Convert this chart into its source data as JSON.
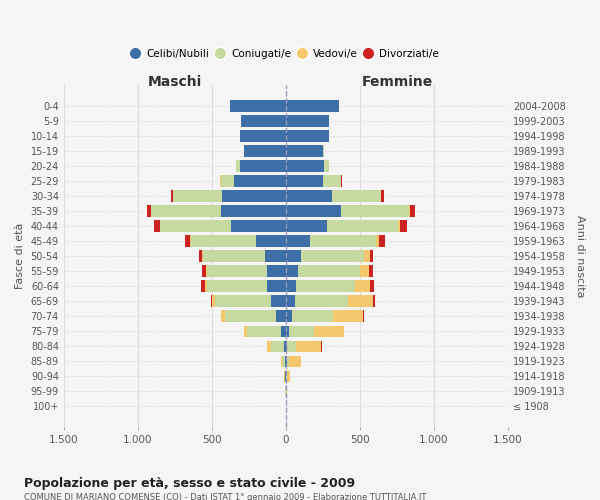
{
  "age_groups": [
    "100+",
    "95-99",
    "90-94",
    "85-89",
    "80-84",
    "75-79",
    "70-74",
    "65-69",
    "60-64",
    "55-59",
    "50-54",
    "45-49",
    "40-44",
    "35-39",
    "30-34",
    "25-29",
    "20-24",
    "15-19",
    "10-14",
    "5-9",
    "0-4"
  ],
  "birth_years": [
    "≤ 1908",
    "1909-1913",
    "1914-1918",
    "1919-1923",
    "1924-1928",
    "1929-1933",
    "1934-1938",
    "1939-1943",
    "1944-1948",
    "1949-1953",
    "1954-1958",
    "1959-1963",
    "1964-1968",
    "1969-1973",
    "1974-1978",
    "1979-1983",
    "1984-1988",
    "1989-1993",
    "1994-1998",
    "1999-2003",
    "2004-2008"
  ],
  "males": {
    "celibi": [
      2,
      2,
      3,
      5,
      10,
      30,
      70,
      100,
      130,
      130,
      140,
      200,
      370,
      440,
      430,
      350,
      310,
      280,
      310,
      300,
      380
    ],
    "coniugati": [
      0,
      2,
      5,
      20,
      90,
      230,
      340,
      380,
      400,
      400,
      420,
      440,
      480,
      470,
      330,
      90,
      25,
      5,
      2,
      0,
      0
    ],
    "vedovi": [
      0,
      0,
      2,
      10,
      25,
      20,
      25,
      20,
      15,
      10,
      8,
      5,
      3,
      2,
      2,
      2,
      0,
      0,
      0,
      0,
      0
    ],
    "divorziati": [
      0,
      0,
      0,
      0,
      2,
      5,
      5,
      8,
      25,
      25,
      20,
      35,
      35,
      25,
      15,
      5,
      2,
      0,
      0,
      0,
      0
    ]
  },
  "females": {
    "nubili": [
      2,
      2,
      3,
      5,
      10,
      20,
      40,
      60,
      70,
      80,
      100,
      160,
      280,
      370,
      310,
      250,
      260,
      250,
      290,
      290,
      360
    ],
    "coniugate": [
      0,
      2,
      5,
      15,
      60,
      170,
      280,
      360,
      400,
      420,
      430,
      450,
      480,
      460,
      330,
      120,
      30,
      5,
      2,
      0,
      0
    ],
    "vedove": [
      2,
      5,
      20,
      80,
      170,
      200,
      200,
      170,
      100,
      60,
      35,
      20,
      10,
      8,
      5,
      2,
      0,
      0,
      0,
      0,
      0
    ],
    "divorziate": [
      0,
      0,
      0,
      0,
      2,
      5,
      5,
      10,
      25,
      30,
      25,
      40,
      45,
      35,
      15,
      5,
      2,
      0,
      0,
      0,
      0
    ]
  },
  "colors": {
    "celibi": "#3d6ea8",
    "coniugati": "#c5d9a0",
    "vedovi": "#f5c86e",
    "divorziati": "#cc2222"
  },
  "xlim": 1500,
  "title": "Popolazione per età, sesso e stato civile - 2009",
  "subtitle": "COMUNE DI MARIANO COMENSE (CO) - Dati ISTAT 1° gennaio 2009 - Elaborazione TUTTITALIA.IT",
  "ylabel_left": "Fasce di età",
  "ylabel_right": "Anni di nascita",
  "xlabel_maschi": "Maschi",
  "xlabel_femmine": "Femmine",
  "background_color": "#f5f5f5",
  "grid_color": "#dddddd",
  "xticks": [
    -1500,
    -1000,
    -500,
    0,
    500,
    1000,
    1500
  ],
  "xtick_labels": [
    "1.500",
    "1.000",
    "500",
    "0",
    "500",
    "1.000",
    "1.500"
  ]
}
